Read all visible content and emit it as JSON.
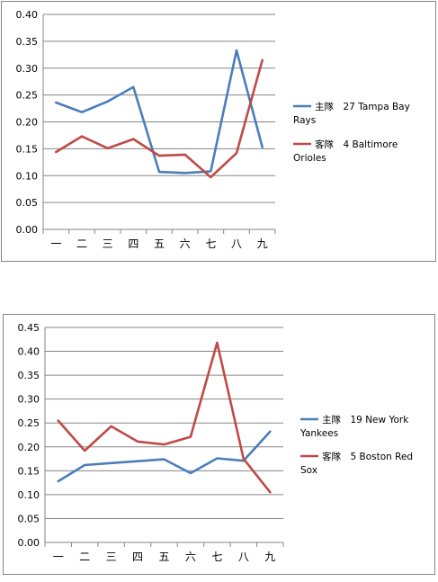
{
  "chart_data": [
    {
      "type": "line",
      "categories": [
        "一",
        "二",
        "三",
        "四",
        "五",
        "六",
        "七",
        "八",
        "九"
      ],
      "ylim": [
        0,
        0.4
      ],
      "yticks": [
        "0.00",
        "0.05",
        "0.10",
        "0.15",
        "0.20",
        "0.25",
        "0.30",
        "0.35",
        "0.40"
      ],
      "grid": true,
      "legend_position": "right",
      "series": [
        {
          "name_line1": "主隊　27 Tampa Bay",
          "name_line2": "Rays",
          "color": "#4a7ebb",
          "values": [
            0.236,
            0.218,
            0.238,
            0.265,
            0.107,
            0.105,
            0.108,
            0.333,
            0.153
          ]
        },
        {
          "name_line1": "客隊　4 Baltimore",
          "name_line2": "Orioles",
          "color": "#be4b48",
          "values": [
            0.144,
            0.173,
            0.151,
            0.168,
            0.137,
            0.139,
            0.097,
            0.142,
            0.315
          ]
        }
      ]
    },
    {
      "type": "line",
      "categories": [
        "一",
        "二",
        "三",
        "四",
        "五",
        "六",
        "七",
        "八",
        "九"
      ],
      "ylim": [
        0,
        0.45
      ],
      "yticks": [
        "0.00",
        "0.05",
        "0.10",
        "0.15",
        "0.20",
        "0.25",
        "0.30",
        "0.35",
        "0.40",
        "0.45"
      ],
      "grid": true,
      "legend_position": "right",
      "series": [
        {
          "name_line1": "主隊　19 New York",
          "name_line2": "Yankees",
          "color": "#4a7ebb",
          "values": [
            0.128,
            0.162,
            0.166,
            0.17,
            0.174,
            0.145,
            0.176,
            0.171,
            0.232
          ]
        },
        {
          "name_line1": "客隊　5 Boston Red",
          "name_line2": "Sox",
          "color": "#be4b48",
          "values": [
            0.255,
            0.192,
            0.243,
            0.211,
            0.205,
            0.221,
            0.418,
            0.175,
            0.105
          ]
        }
      ]
    }
  ]
}
